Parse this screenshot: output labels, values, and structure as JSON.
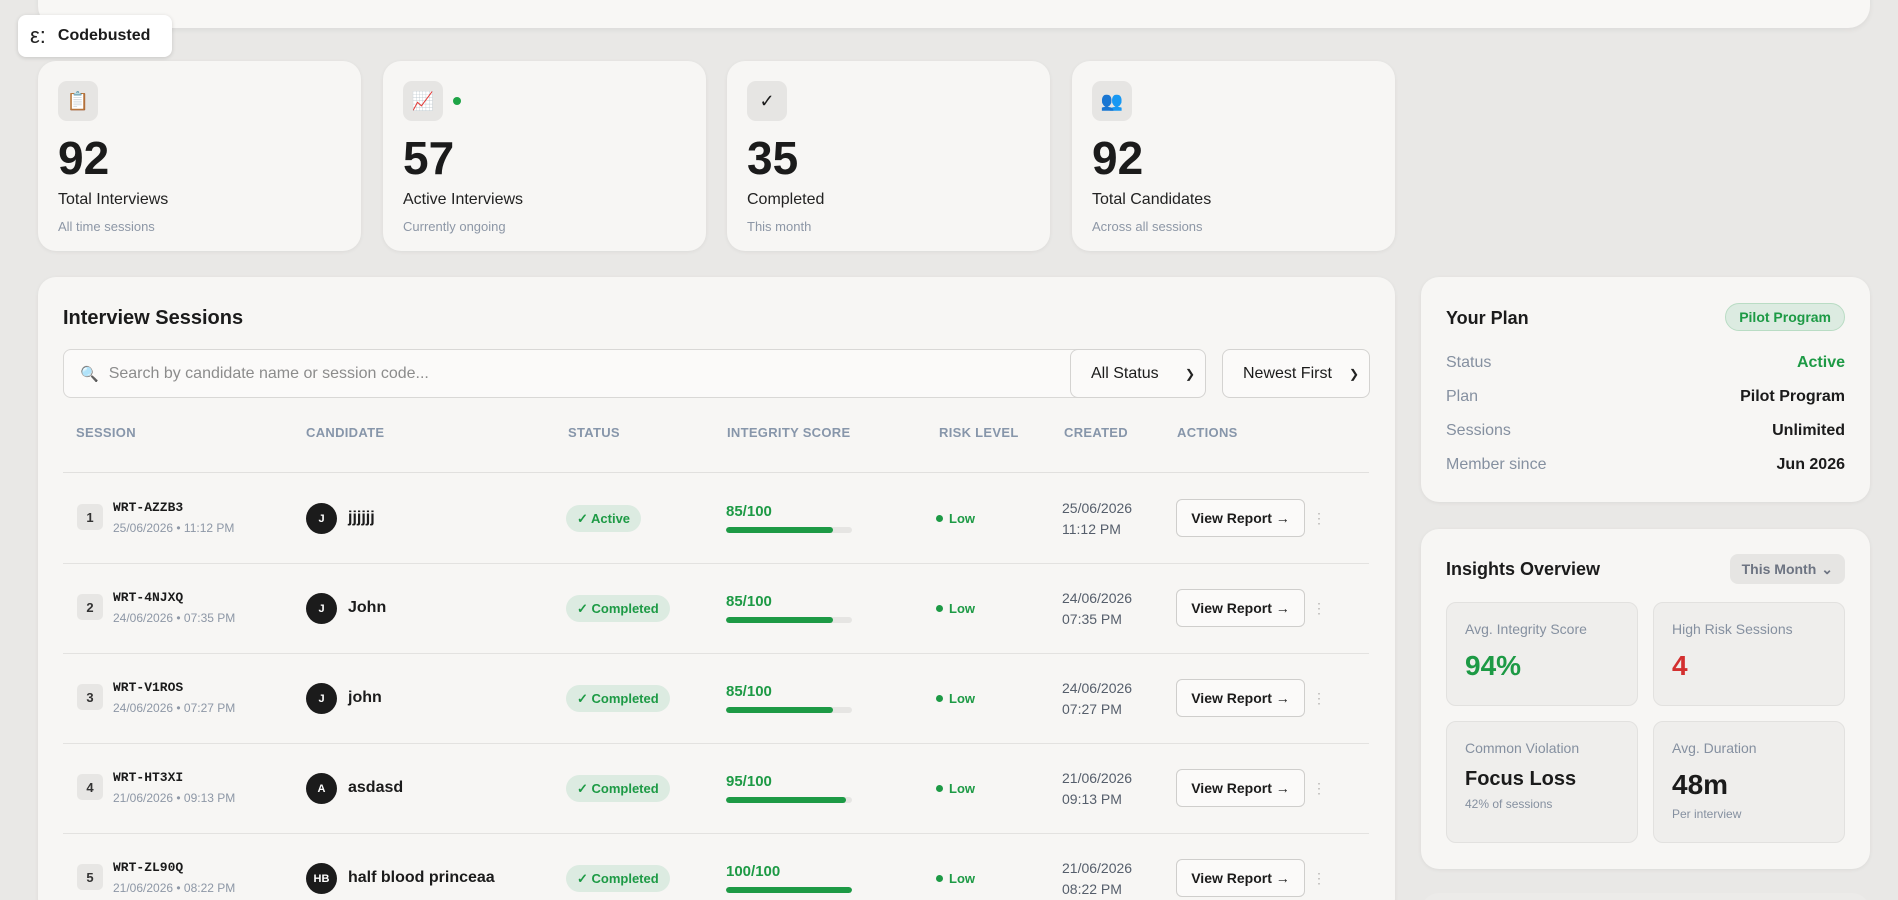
{
  "brand": {
    "name": "Codebusted",
    "logo_glyph": "ε:"
  },
  "stats": [
    {
      "icon": "clipboard-icon",
      "glyph": "📋",
      "value": "92",
      "label": "Total Interviews",
      "sub": "All time sessions"
    },
    {
      "icon": "chart-trend-icon",
      "glyph": "📈",
      "value": "57",
      "label": "Active Interviews",
      "sub": "Currently ongoing"
    },
    {
      "icon": "checkmark-icon",
      "glyph": "✓",
      "value": "35",
      "label": "Completed",
      "sub": "This month"
    },
    {
      "icon": "people-icon",
      "glyph": "👥",
      "value": "92",
      "label": "Total Candidates",
      "sub": "Across all sessions"
    }
  ],
  "sessions": {
    "title": "Interview Sessions",
    "search_placeholder": "Search by candidate name or session code...",
    "status_filter": "All Status",
    "sort": "Newest First",
    "columns": [
      "SESSION",
      "CANDIDATE",
      "STATUS",
      "INTEGRITY SCORE",
      "RISK LEVEL",
      "CREATED",
      "ACTIONS"
    ],
    "view_label": "View Report →",
    "rows": [
      {
        "n": "1",
        "code": "WRT-AZZB3",
        "when": "25/06/2026 • 11:12 PM",
        "initials": "J",
        "name": "jjjjjj",
        "status": "✓ Active",
        "score": "85/100",
        "score_pct": 85,
        "risk": "Low",
        "created_date": "25/06/2026",
        "created_time": "11:12 PM"
      },
      {
        "n": "2",
        "code": "WRT-4NJXQ",
        "when": "24/06/2026 • 07:35 PM",
        "initials": "J",
        "name": "John",
        "status": "✓ Completed",
        "score": "85/100",
        "score_pct": 85,
        "risk": "Low",
        "created_date": "24/06/2026",
        "created_time": "07:35 PM"
      },
      {
        "n": "3",
        "code": "WRT-V1ROS",
        "when": "24/06/2026 • 07:27 PM",
        "initials": "J",
        "name": "john",
        "status": "✓ Completed",
        "score": "85/100",
        "score_pct": 85,
        "risk": "Low",
        "created_date": "24/06/2026",
        "created_time": "07:27 PM"
      },
      {
        "n": "4",
        "code": "WRT-HT3XI",
        "when": "21/06/2026 • 09:13 PM",
        "initials": "A",
        "name": "asdasd",
        "status": "✓ Completed",
        "score": "95/100",
        "score_pct": 95,
        "risk": "Low",
        "created_date": "21/06/2026",
        "created_time": "09:13 PM"
      },
      {
        "n": "5",
        "code": "WRT-ZL90Q",
        "when": "21/06/2026 • 08:22 PM",
        "initials": "HB",
        "name": "half blood princeaa",
        "status": "✓ Completed",
        "score": "100/100",
        "score_pct": 100,
        "risk": "Low",
        "created_date": "21/06/2026",
        "created_time": "08:22 PM"
      }
    ]
  },
  "plan": {
    "title": "Your Plan",
    "badge": "Pilot Program",
    "items": [
      {
        "k": "Status",
        "v": "Active"
      },
      {
        "k": "Plan",
        "v": "Pilot Program"
      },
      {
        "k": "Sessions",
        "v": "Unlimited"
      },
      {
        "k": "Member since",
        "v": "Jun 2026"
      }
    ]
  },
  "insights": {
    "title": "Insights Overview",
    "period": "This Month",
    "metrics": [
      {
        "label": "Avg. Integrity Score",
        "value": "94%"
      },
      {
        "label": "High Risk Sessions",
        "value": "4"
      },
      {
        "label": "Common Violation",
        "value": "Focus Loss",
        "sub": "42% of sessions"
      },
      {
        "label": "Avg. Duration",
        "value": "48m",
        "sub": "Per interview"
      }
    ]
  },
  "colors": {
    "accent_green": "#1d9a45",
    "alert_red": "#d32f2f",
    "background": "#e9e8e6"
  }
}
